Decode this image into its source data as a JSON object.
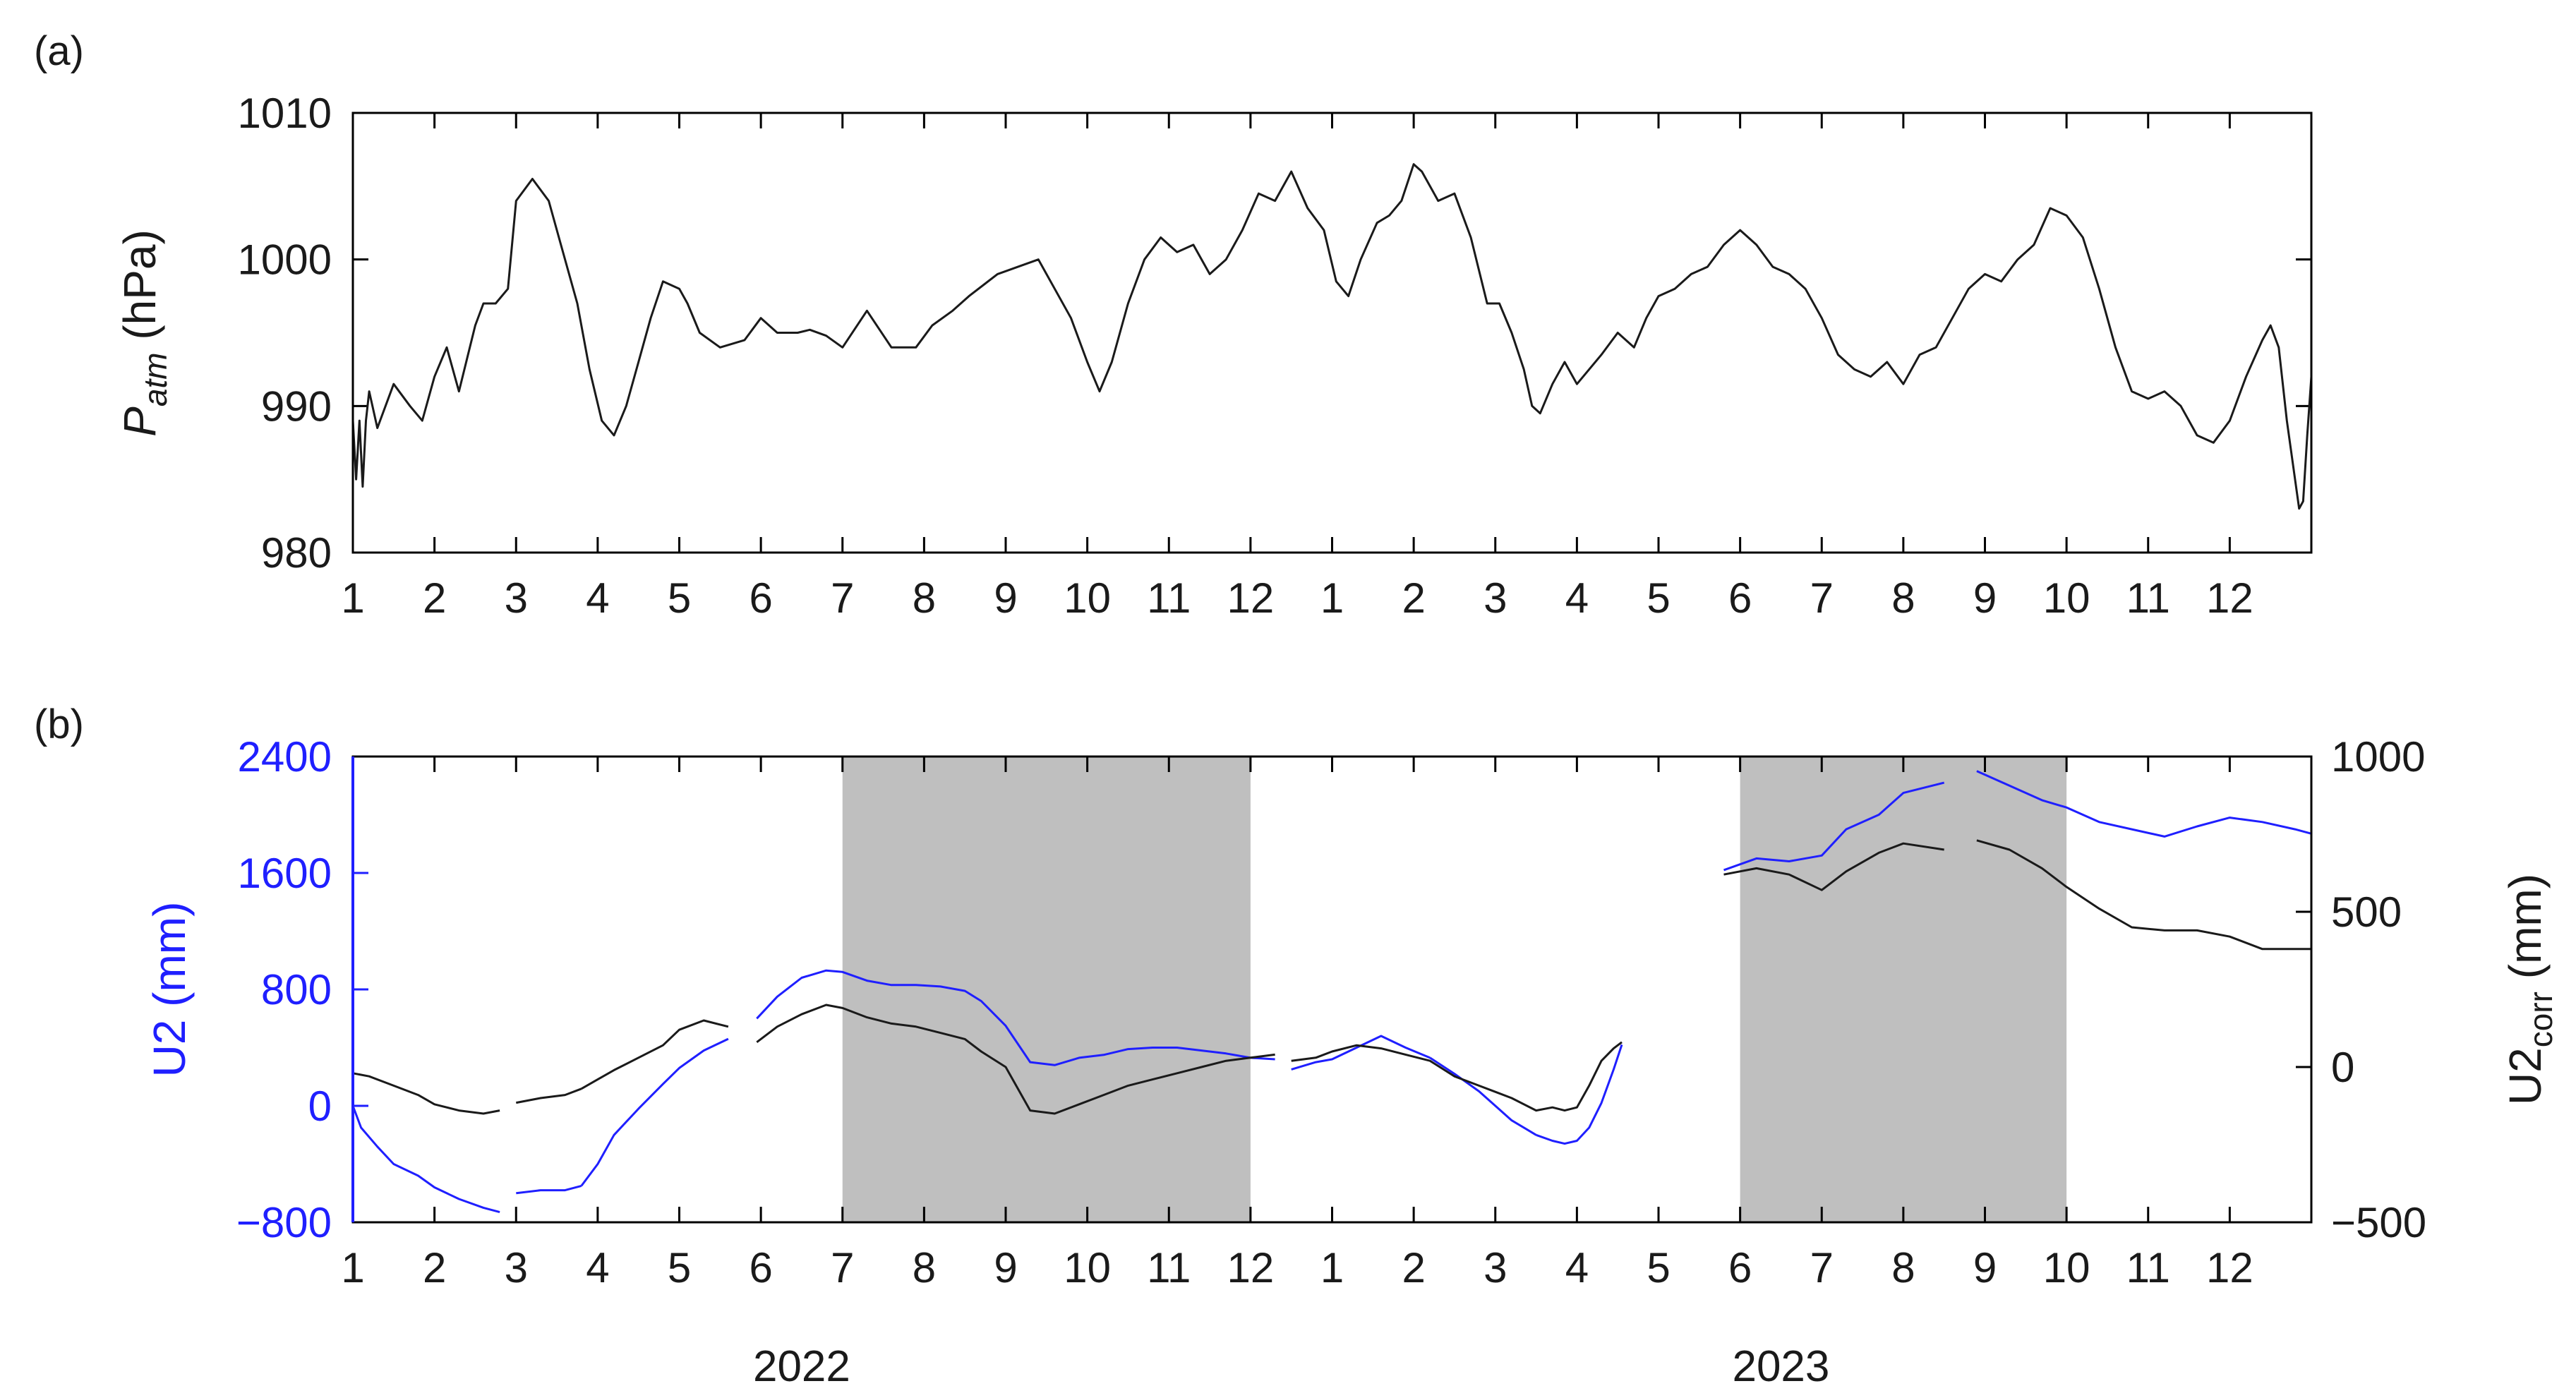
{
  "chart_data": [
    {
      "panel_label": "(a)",
      "type": "line",
      "ylabel_main": "P",
      "ylabel_sub": "atm",
      "ylabel_unit": " (hPa)",
      "ylim": [
        980,
        1010
      ],
      "yticks": [
        "980",
        "990",
        "1000",
        "1010"
      ],
      "xlim": [
        0,
        24
      ],
      "xticks": [
        "1",
        "2",
        "3",
        "4",
        "5",
        "6",
        "7",
        "8",
        "9",
        "10",
        "11",
        "12",
        "1",
        "2",
        "3",
        "4",
        "5",
        "6",
        "7",
        "8",
        "9",
        "10",
        "11",
        "12"
      ],
      "grid": false,
      "colors": {
        "line": "#1a1a1a"
      },
      "series": [
        {
          "x": [
            0,
            0.04,
            0.08,
            0.12,
            0.16,
            0.2,
            0.3,
            0.5,
            0.7,
            0.85,
            1.0,
            1.15,
            1.3,
            1.5,
            1.6,
            1.75,
            1.9,
            2.0,
            2.2,
            2.4,
            2.55,
            2.75,
            2.9,
            3.05,
            3.2,
            3.35,
            3.5,
            3.65,
            3.8,
            4.0,
            4.1,
            4.25,
            4.5,
            4.8,
            5.0,
            5.2,
            5.45,
            5.6,
            5.8,
            6.0,
            6.3,
            6.6,
            6.9,
            7.1,
            7.35,
            7.55,
            7.9,
            8.15,
            8.4,
            8.6,
            8.8,
            9.0,
            9.15,
            9.3,
            9.5,
            9.7,
            9.9,
            10.1,
            10.3,
            10.5,
            10.7,
            10.9,
            11.1,
            11.3,
            11.5,
            11.7,
            11.9,
            12.05,
            12.2,
            12.35,
            12.55,
            12.7,
            12.85,
            13.0,
            13.1,
            13.3,
            13.5,
            13.7,
            13.9,
            14.05,
            14.2,
            14.35,
            14.45,
            14.55,
            14.7,
            14.85,
            15.0,
            15.15,
            15.3,
            15.5,
            15.7,
            15.85,
            16.0,
            16.2,
            16.4,
            16.6,
            16.8,
            17.0,
            17.2,
            17.4,
            17.6,
            17.8,
            18.0,
            18.2,
            18.4,
            18.6,
            18.8,
            19.0,
            19.2,
            19.4,
            19.6,
            19.8,
            20.0,
            20.2,
            20.4,
            20.6,
            20.8,
            21.0,
            21.2,
            21.4,
            21.6,
            21.8,
            22.0,
            22.2,
            22.4,
            22.6,
            22.8,
            23.0,
            23.2,
            23.4,
            23.5,
            23.6,
            23.7,
            23.75,
            23.8,
            23.85,
            23.9,
            23.95,
            24.0
          ],
          "y": [
            989,
            985,
            989,
            984.5,
            989,
            991,
            988.5,
            991.5,
            990,
            989,
            992,
            994,
            991,
            995.5,
            997,
            997,
            998,
            1004,
            1005.5,
            1004,
            1001,
            997,
            992.5,
            989,
            988,
            990,
            993,
            996,
            998.5,
            998,
            997,
            995,
            994,
            994.5,
            996,
            995,
            995,
            995.2,
            994.8,
            994,
            996.5,
            994,
            994,
            995.5,
            996.5,
            997.5,
            999,
            999.5,
            1000,
            998,
            996,
            993,
            991,
            993,
            997,
            1000,
            1001.5,
            1000.5,
            1001,
            999,
            1000,
            1002,
            1004.5,
            1004,
            1006,
            1003.5,
            1002,
            998.5,
            997.5,
            1000,
            1002.5,
            1003,
            1004,
            1006.5,
            1006,
            1004,
            1004.5,
            1001.5,
            997,
            997,
            995,
            992.5,
            990,
            989.5,
            991.5,
            993,
            991.5,
            992.5,
            993.5,
            995,
            994,
            996,
            997.5,
            998,
            999,
            999.5,
            1001,
            1002,
            1001,
            999.5,
            999,
            998,
            996,
            993.5,
            992.5,
            992,
            993,
            991.5,
            993.5,
            994,
            996,
            998,
            999,
            998.5,
            1000,
            1001,
            1003.5,
            1003,
            1001.5,
            998,
            994,
            991,
            990.5,
            991,
            990,
            988,
            987.5,
            989,
            992,
            994.5,
            995.5,
            994,
            989,
            987,
            985,
            983,
            983.5,
            988,
            992
          ]
        }
      ]
    },
    {
      "panel_label": "(b)",
      "type": "line",
      "ylabel_left": "U2 (mm)",
      "ylabel_right_main": "U2",
      "ylabel_right_sub": "corr",
      "ylabel_right_unit": " (mm)",
      "ylim_left": [
        -800,
        2400
      ],
      "ylim_right": [
        -500,
        1000
      ],
      "yticks_left": [
        "-800",
        "0",
        "800",
        "1600",
        "2400"
      ],
      "yticks_right": [
        "-500",
        "0",
        "500",
        "1000"
      ],
      "xlim": [
        0,
        24
      ],
      "xticks": [
        "1",
        "2",
        "3",
        "4",
        "5",
        "6",
        "7",
        "8",
        "9",
        "10",
        "11",
        "12",
        "1",
        "2",
        "3",
        "4",
        "5",
        "6",
        "7",
        "8",
        "9",
        "10",
        "11",
        "12"
      ],
      "year_labels": [
        {
          "text": "2022",
          "at": 5.5
        },
        {
          "text": "2023",
          "at": 17.5
        }
      ],
      "shaded_ranges": [
        [
          6,
          11
        ],
        [
          17,
          21
        ]
      ],
      "grid": false,
      "colors": {
        "U2": "#1f1fff",
        "U2corr": "#1a1a1a",
        "shade": "#bfbfbf",
        "left_axis": "#1f1fff"
      },
      "series": [
        {
          "name": "U2",
          "axis": "left",
          "segments": [
            {
              "x": [
                0,
                0.1,
                0.3,
                0.5,
                0.8,
                1.0,
                1.3,
                1.6,
                1.8
              ],
              "y": [
                0,
                -150,
                -280,
                -400,
                -480,
                -560,
                -640,
                -700,
                -730
              ]
            },
            {
              "x": [
                2.0,
                2.3,
                2.6,
                2.8
              ],
              "y": [
                -600,
                -580,
                -580,
                -550
              ]
            },
            {
              "x": [
                2.8,
                3.0,
                3.2,
                3.5,
                3.8,
                4.0,
                4.3,
                4.6
              ],
              "y": [
                -550,
                -400,
                -200,
                -20,
                150,
                260,
                380,
                460
              ]
            },
            {
              "x": [
                4.95,
                5.2,
                5.5,
                5.8,
                6.0,
                6.3,
                6.6,
                6.9,
                7.2,
                7.5,
                7.7,
                8.0,
                8.3,
                8.6,
                8.9,
                9.2,
                9.5,
                9.8,
                10.1,
                10.4,
                10.7,
                11.0,
                11.3
              ],
              "y": [
                600,
                750,
                880,
                930,
                920,
                860,
                830,
                830,
                820,
                790,
                720,
                550,
                300,
                280,
                330,
                350,
                390,
                400,
                400,
                380,
                360,
                330,
                320
              ]
            },
            {
              "x": [
                11.5,
                11.8,
                12.0,
                12.3,
                12.6,
                12.9,
                13.2
              ],
              "y": [
                250,
                300,
                320,
                400,
                480,
                400,
                330
              ]
            },
            {
              "x": [
                13.2,
                13.5,
                13.8,
                14.0,
                14.2,
                14.5
              ],
              "y": [
                330,
                220,
                100,
                0,
                -100,
                -200
              ]
            },
            {
              "x": [
                14.5,
                14.7,
                14.85,
                15.0,
                15.15,
                15.3,
                15.45,
                15.55
              ],
              "y": [
                -200,
                -240,
                -260,
                -240,
                -150,
                20,
                250,
                420
              ]
            },
            {
              "x": [
                16.8,
                17.2,
                17.6,
                18.0,
                18.3,
                18.7,
                19.0,
                19.5
              ],
              "y": [
                1620,
                1700,
                1680,
                1720,
                1900,
                2000,
                2150,
                2220
              ]
            },
            {
              "x": [
                19.9,
                20.3,
                20.7,
                21.0,
                21.4,
                21.8,
                22.2,
                22.6,
                23.0,
                23.4,
                23.8,
                24.0
              ],
              "y": [
                2300,
                2200,
                2100,
                2050,
                1950,
                1900,
                1850,
                1920,
                1980,
                1950,
                1900,
                1870
              ]
            }
          ]
        },
        {
          "name": "U2corr",
          "axis": "right",
          "segments": [
            {
              "x": [
                0,
                0.2,
                0.5,
                0.8,
                1.0,
                1.3,
                1.6,
                1.8
              ],
              "y": [
                -20,
                -30,
                -60,
                -90,
                -120,
                -140,
                -150,
                -140
              ]
            },
            {
              "x": [
                2.0,
                2.3,
                2.6,
                2.8
              ],
              "y": [
                -115,
                -100,
                -90,
                -70
              ]
            },
            {
              "x": [
                2.8,
                3.0,
                3.2,
                3.5,
                3.8,
                4.0,
                4.3,
                4.6
              ],
              "y": [
                -70,
                -40,
                -10,
                30,
                70,
                120,
                150,
                130
              ]
            },
            {
              "x": [
                4.95,
                5.2,
                5.5,
                5.8,
                6.0,
                6.3,
                6.6,
                6.9,
                7.2,
                7.5,
                7.7,
                8.0,
                8.3,
                8.6,
                8.9,
                9.2,
                9.5,
                9.8,
                10.1,
                10.4,
                10.7,
                11.0,
                11.3
              ],
              "y": [
                80,
                130,
                170,
                200,
                190,
                160,
                140,
                130,
                110,
                90,
                50,
                0,
                -140,
                -150,
                -120,
                -90,
                -60,
                -40,
                -20,
                0,
                20,
                30,
                40
              ]
            },
            {
              "x": [
                11.5,
                11.8,
                12.0,
                12.3,
                12.6,
                12.9,
                13.2,
                13.5,
                13.8,
                14.0,
                14.2,
                14.5,
                14.7,
                14.85,
                15.0,
                15.15,
                15.3,
                15.45,
                15.55
              ],
              "y": [
                20,
                30,
                50,
                70,
                60,
                40,
                20,
                -30,
                -60,
                -80,
                -100,
                -140,
                -130,
                -140,
                -130,
                -60,
                20,
                60,
                80
              ]
            },
            {
              "x": [
                16.8,
                17.2,
                17.6,
                18.0,
                18.3,
                18.7,
                19.0,
                19.5
              ],
              "y": [
                620,
                640,
                620,
                570,
                630,
                690,
                720,
                700
              ]
            },
            {
              "x": [
                19.9,
                20.3,
                20.7,
                21.0,
                21.4,
                21.8,
                22.2,
                22.6,
                23.0,
                23.4,
                23.8,
                24.0
              ],
              "y": [
                730,
                700,
                640,
                580,
                510,
                450,
                440,
                440,
                420,
                380,
                380,
                380
              ]
            }
          ]
        }
      ]
    }
  ]
}
